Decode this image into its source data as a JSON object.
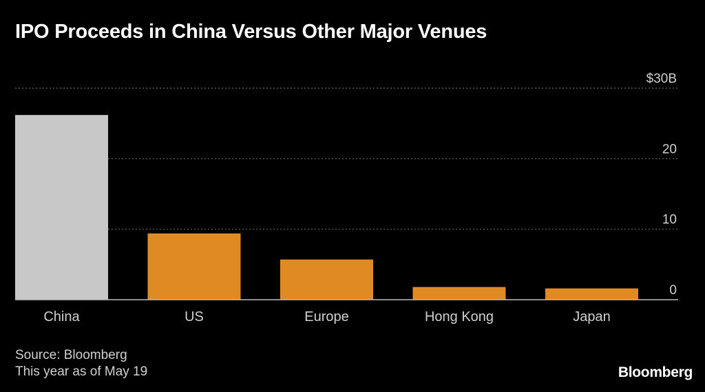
{
  "chart_data": {
    "type": "bar",
    "title": "IPO Proceeds in China Versus Other Major Venues",
    "categories": [
      "China",
      "US",
      "Europe",
      "Hong Kong",
      "Japan"
    ],
    "values": [
      26.2,
      9.4,
      5.7,
      1.8,
      1.6
    ],
    "unit": "$B",
    "ylim": [
      0,
      30
    ],
    "yticks": [
      0,
      10,
      20,
      30
    ],
    "ytick_labels": [
      "0",
      "10",
      "20",
      "$30B"
    ],
    "grid": true,
    "xlabel": "",
    "ylabel": ""
  },
  "colors": {
    "highlight": "#c8c8c8",
    "bar": "#e08a24",
    "grid": "#6a6a6a",
    "axis": "#bdbdbd",
    "tick_text": "#d0d0d0"
  },
  "footer": {
    "source": "Source: Bloomberg",
    "note": "This year as of May 19",
    "brand": "Bloomberg"
  }
}
